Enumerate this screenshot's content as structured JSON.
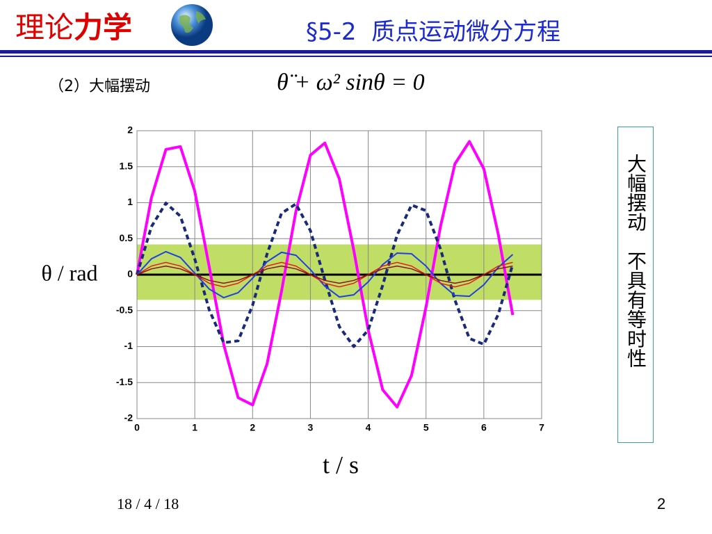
{
  "header": {
    "course_a": "理论",
    "course_b": "力学",
    "title": "§5-2  质点运动微分方程"
  },
  "subtitle": "（2）大幅摆动",
  "equation": "θ̈ + ω² sinθ = 0",
  "side_note": "大幅摆动　不具有等时性",
  "footer": {
    "date": "18 / 4 / 18",
    "page": "2"
  },
  "chart_data": {
    "type": "line",
    "y_label": "θ / rad",
    "x_label": "t / s",
    "xlim": [
      0,
      7
    ],
    "xticks": [
      0,
      1,
      2,
      3,
      4,
      5,
      6,
      7
    ],
    "ylim": [
      -2,
      2
    ],
    "yticks": [
      -2,
      -1.5,
      -1,
      -0.5,
      0,
      0.5,
      1,
      1.5,
      2
    ],
    "grid": true,
    "zero_line": true,
    "highlight_band": {
      "ylim": [
        -0.35,
        0.42
      ],
      "color": "#b5d84a"
    },
    "x": [
      0,
      0.25,
      0.5,
      0.75,
      1,
      1.25,
      1.5,
      1.75,
      2,
      2.25,
      2.5,
      2.75,
      3,
      3.25,
      3.5,
      3.75,
      4,
      4.25,
      4.5,
      4.75,
      5,
      5.25,
      5.5,
      5.75,
      6,
      6.25,
      6.5
    ],
    "series": [
      {
        "color": "#ff00ff",
        "width": 4,
        "dashed": false,
        "values": [
          0,
          1.07,
          1.74,
          1.78,
          1.16,
          0.11,
          -0.97,
          -1.71,
          -1.81,
          -1.24,
          -0.23,
          0.88,
          1.66,
          1.83,
          1.33,
          0.34,
          -0.77,
          -1.6,
          -1.84,
          -1.4,
          -0.45,
          0.67,
          1.54,
          1.85,
          1.47,
          0.56,
          -0.56
        ]
      },
      {
        "color": "#1a2a7a",
        "width": 4,
        "dashed": true,
        "values": [
          0,
          0.667,
          0.994,
          0.813,
          0.218,
          -0.489,
          -0.946,
          -0.92,
          -0.425,
          0.288,
          0.853,
          0.983,
          0.612,
          -0.073,
          -0.722,
          -0.999,
          -0.769,
          -0.147,
          0.55,
          0.967,
          0.889,
          0.358,
          -0.355,
          -0.887,
          -0.968,
          -0.553,
          0.144
        ]
      },
      {
        "color": "#2040e0",
        "width": 2,
        "dashed": false,
        "values": [
          0,
          0.22,
          0.32,
          0.24,
          0.02,
          -0.2,
          -0.32,
          -0.25,
          -0.05,
          0.18,
          0.31,
          0.27,
          0.07,
          -0.16,
          -0.31,
          -0.28,
          -0.1,
          0.14,
          0.3,
          0.29,
          0.12,
          -0.12,
          -0.29,
          -0.3,
          -0.14,
          0.1,
          0.28
        ]
      },
      {
        "color": "#e02020",
        "width": 1.5,
        "dashed": false,
        "values": [
          0,
          0.12,
          0.17,
          0.12,
          0,
          -0.12,
          -0.17,
          -0.12,
          0,
          0.12,
          0.17,
          0.12,
          0,
          -0.12,
          -0.17,
          -0.12,
          0,
          0.12,
          0.17,
          0.12,
          0,
          -0.12,
          -0.17,
          -0.12,
          0,
          0.12,
          0.17
        ]
      },
      {
        "color": "#901010",
        "width": 1.5,
        "dashed": false,
        "values": [
          0,
          0.08,
          0.12,
          0.08,
          0,
          -0.08,
          -0.12,
          -0.08,
          0,
          0.08,
          0.12,
          0.08,
          0,
          -0.08,
          -0.12,
          -0.08,
          0,
          0.08,
          0.12,
          0.08,
          0,
          -0.08,
          -0.12,
          -0.08,
          0,
          0.08,
          0.12
        ]
      }
    ]
  }
}
